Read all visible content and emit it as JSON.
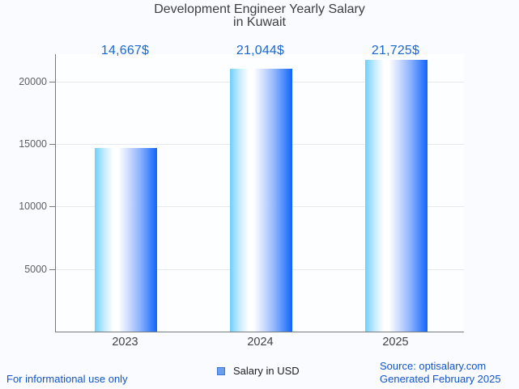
{
  "title": {
    "line1": "Development Engineer Yearly Salary",
    "line2": "in Kuwait"
  },
  "chart_data": {
    "type": "bar",
    "title": "Development Engineer Yearly Salary in Kuwait",
    "categories": [
      "2023",
      "2024",
      "2025"
    ],
    "series": [
      {
        "name": "Salary in USD",
        "values": [
          14667,
          21044,
          21725
        ],
        "value_labels": [
          "14,667$",
          "21,044$",
          "21,725$"
        ]
      }
    ],
    "xlabel": "",
    "ylabel": "",
    "ylim": [
      0,
      22200
    ],
    "yticks": [
      {
        "value": 5000,
        "label": "5000"
      },
      {
        "value": 10000,
        "label": "10000"
      },
      {
        "value": 15000,
        "label": "15000"
      },
      {
        "value": 20000,
        "label": "20000"
      }
    ],
    "grid": true,
    "legend_position": "bottom",
    "bar_gradient_left": "#6fd0fa",
    "bar_gradient_mid": "#ffffff",
    "bar_gradient_right": "#1164fb"
  },
  "legend": {
    "label": "Salary in USD",
    "swatch_fill": "#6d9eeb",
    "swatch_border": "#3c78d8"
  },
  "footer": {
    "disclaimer": "For informational use only",
    "source": "Source: optisalary.com",
    "generated": "Generated February 2025"
  },
  "colors": {
    "value_label": "#1967d2",
    "footer_link": "#1155cc",
    "title": "#3c4043",
    "axis_label": "#5b5f64",
    "category_label": "#3e4247",
    "background": "#fafbfe"
  }
}
